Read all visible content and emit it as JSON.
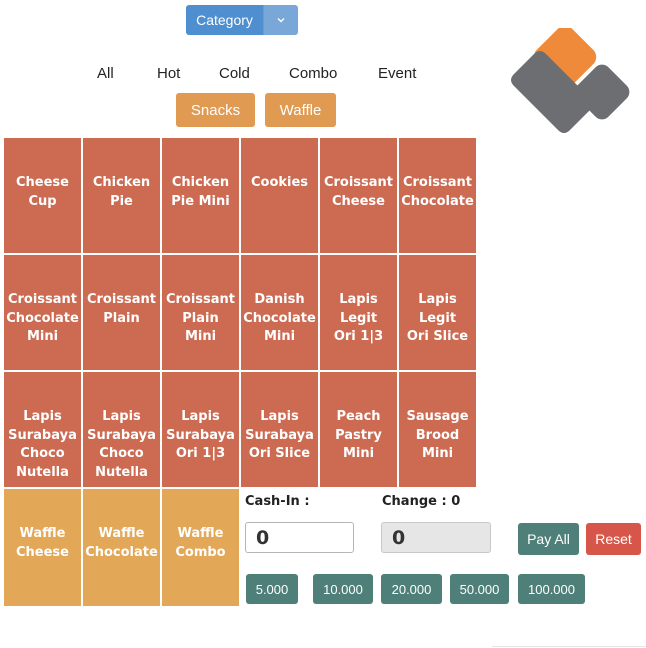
{
  "category": {
    "label": "Category"
  },
  "tabs": [
    "All",
    "Hot",
    "Cold",
    "Combo",
    "Event"
  ],
  "subcategories": [
    "Snacks",
    "Waffle"
  ],
  "products": [
    "Cheese\nCup",
    "Chicken\nPie",
    "Chicken\nPie Mini",
    "Cookies",
    "Croissant\nCheese",
    "Croissant\nChocolate",
    "Croissant\nChocolate\nMini",
    "Croissant\nPlain",
    "Croissant\nPlain\nMini",
    "Danish\nChocolate\nMini",
    "Lapis\nLegit\nOri 1|3",
    "Lapis\nLegit\nOri Slice",
    "Lapis\nSurabaya\nChoco\nNutella",
    "Lapis\nSurabaya\nChoco\nNutella",
    "Lapis\nSurabaya\nOri 1|3",
    "Lapis\nSurabaya\nOri Slice",
    "Peach\nPastry\nMini",
    "Sausage\nBrood\nMini"
  ],
  "waffles": [
    "Waffle\nCheese",
    "Waffle\nChocolate",
    "Waffle\nCombo"
  ],
  "payment": {
    "cash_in_label": "Cash-In :",
    "change_label": "Change : 0",
    "cash_in_value": "0",
    "change_value": "0",
    "pay_all_label": "Pay All",
    "reset_label": "Reset",
    "quick_cash": [
      "5.000",
      "10.000",
      "20.000",
      "50.000",
      "100.000"
    ]
  },
  "colors": {
    "product_tile": "#cc6b52",
    "waffle_tile": "#e3a758",
    "primary": "#4f8fcf",
    "teal_button": "#4e7f78",
    "reset_button": "#d6574a",
    "logo_orange": "#ee8a3a",
    "logo_gray": "#6d6e71"
  }
}
